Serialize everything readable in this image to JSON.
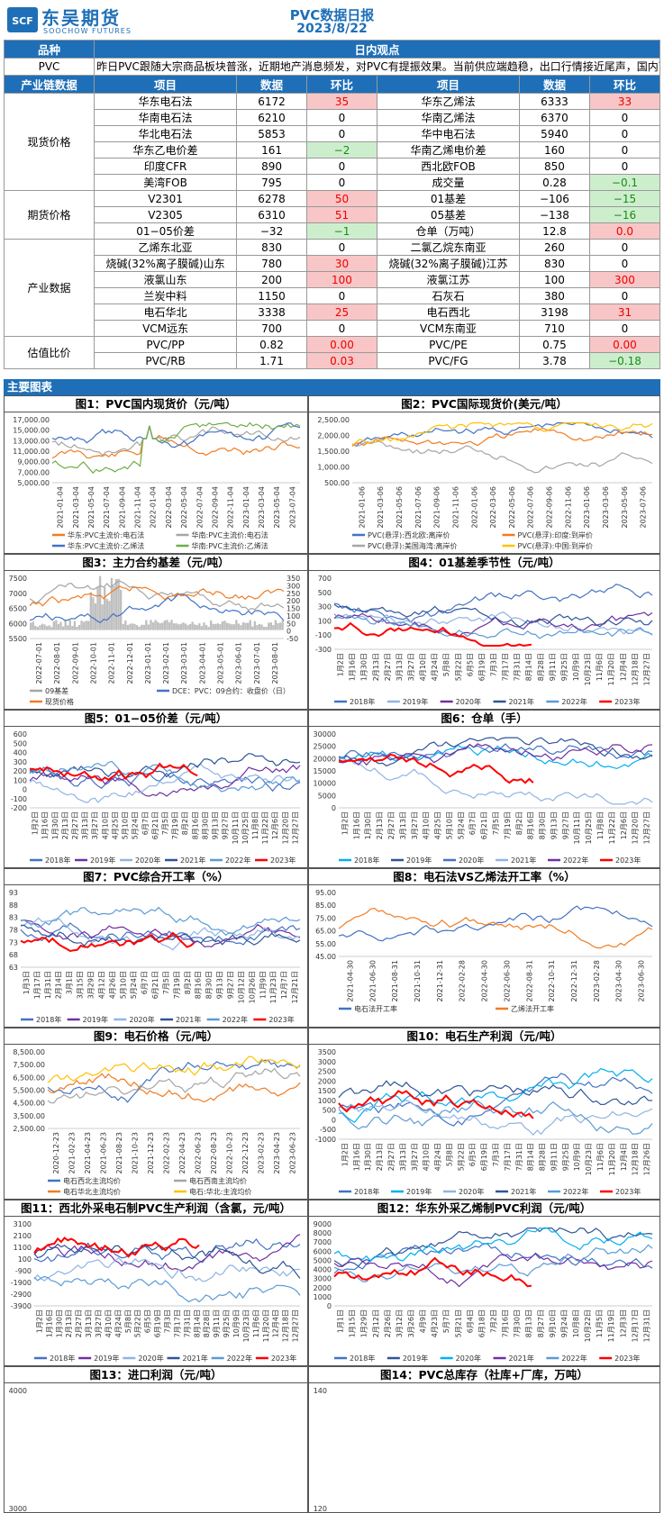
{
  "header": {
    "logo_cn": "东吴期货",
    "logo_en": "SOOCHOW FUTURES",
    "logo_mark": "SCF",
    "title": "PVC数据日报",
    "date": "2023/8/22"
  },
  "colors": {
    "blue_bar": "#1e6fb7",
    "red_cell": "#f8c6c6",
    "green_cell": "#cdeecd"
  },
  "top": {
    "col1": "品种",
    "col2": "日内观点",
    "product": "PVC",
    "view": "昨日PVC跟随大宗商品板块普涨，近期地产消息频发，对PVC有提振效果。当前供应端趋稳，出口行情接近尾声，国内下游行业追涨意愿不强烈，目前基本面无明显改善，关注宏观情况变化"
  },
  "table_header": [
    "产业链数据",
    "项目",
    "数据",
    "环比",
    "项目",
    "数据",
    "环比"
  ],
  "groups": [
    {
      "name": "现货价格",
      "rows": [
        [
          "华东电石法",
          "6172",
          "35",
          "red",
          "华东乙烯法",
          "6333",
          "33",
          "red"
        ],
        [
          "华南电石法",
          "6210",
          "0",
          "",
          "华南乙烯法",
          "6370",
          "0",
          ""
        ],
        [
          "华北电石法",
          "5853",
          "0",
          "",
          "华中电石法",
          "5940",
          "0",
          ""
        ],
        [
          "华东乙电价差",
          "161",
          "−2",
          "green",
          "华南乙烯电价差",
          "160",
          "0",
          ""
        ],
        [
          "印度CFR",
          "890",
          "0",
          "",
          "西北欧FOB",
          "850",
          "0",
          ""
        ],
        [
          "美湾FOB",
          "795",
          "0",
          "",
          "成交量",
          "0.28",
          "−0.1",
          "green"
        ]
      ]
    },
    {
      "name": "期货价格",
      "rows": [
        [
          "V2301",
          "6278",
          "50",
          "red",
          "01基差",
          "−106",
          "−15",
          "green"
        ],
        [
          "V2305",
          "6310",
          "51",
          "red",
          "05基差",
          "−138",
          "−16",
          "green"
        ],
        [
          "01−05价差",
          "−32",
          "−1",
          "green",
          "仓单（万吨）",
          "12.8",
          "0.0",
          "red"
        ]
      ]
    },
    {
      "name": "产业数据",
      "rows": [
        [
          "乙烯东北亚",
          "830",
          "0",
          "",
          "二氯乙烷东南亚",
          "260",
          "0",
          ""
        ],
        [
          "烧碱(32%离子膜碱)山东",
          "780",
          "30",
          "red",
          "烧碱(32%离子膜碱)江苏",
          "830",
          "0",
          ""
        ],
        [
          "液氯山东",
          "200",
          "100",
          "red",
          "液氯江苏",
          "100",
          "300",
          "red"
        ],
        [
          "兰炭中料",
          "1150",
          "0",
          "",
          "石灰石",
          "380",
          "0",
          ""
        ],
        [
          "电石华北",
          "3338",
          "25",
          "red",
          "电石西北",
          "3198",
          "31",
          "red"
        ],
        [
          "VCM远东",
          "700",
          "0",
          "",
          "VCM东南亚",
          "710",
          "0",
          ""
        ]
      ]
    },
    {
      "name": "估值比价",
      "rows": [
        [
          "PVC/PP",
          "0.82",
          "0.00",
          "red",
          "PVC/PE",
          "0.75",
          "0.00",
          "red"
        ],
        [
          "PVC/RB",
          "1.71",
          "0.03",
          "red",
          "PVC/FG",
          "3.78",
          "−0.18",
          "green"
        ]
      ]
    }
  ],
  "section_label": "主要图表",
  "charts": [
    {
      "title": "图1：PVC国内现货价（元/吨）",
      "yticks": [
        "17,000.00",
        "15,000.00",
        "13,000.00",
        "11,000.00",
        "9,000.00",
        "7,000.00",
        "5,000.00"
      ],
      "xticks": [
        "2021-01-04",
        "2021-03-04",
        "2021-05-04",
        "2021-07-04",
        "2021-09-04",
        "2021-11-04",
        "2022-01-04",
        "2022-03-04",
        "2022-05-04",
        "2022-07-04",
        "2022-09-04",
        "2022-11-04",
        "2023-01-04",
        "2023-03-04",
        "2023-05-04",
        "2023-07-04"
      ],
      "legend": [
        "华东:PVC主流价:电石法",
        "华南:PVC主流价:电石法",
        "华东:PVC主流价:乙烯法",
        "华南:PVC主流价:乙烯法"
      ],
      "legend_colors": [
        "#f07c22",
        "#a5a5a5",
        "#4472c4",
        "#70ad47"
      ]
    },
    {
      "title": "图2：PVC国际现货价(美元/吨）",
      "yticks": [
        "2,500.00",
        "2,000.00",
        "1,500.00",
        "1,000.00",
        "500.00"
      ],
      "xticks": [
        "2021-01-06",
        "2021-03-06",
        "2021-05-06",
        "2021-07-06",
        "2021-09-06",
        "2021-11-06",
        "2022-01-06",
        "2022-03-06",
        "2022-05-06",
        "2022-07-06",
        "2022-09-06",
        "2022-11-06",
        "2023-01-06",
        "2023-03-06",
        "2023-05-06",
        "2023-07-06"
      ],
      "legend": [
        "PVC(悬浮):西北欧:离岸价",
        "PVC(悬浮):印度:到岸价",
        "PVC(悬浮):美国海湾:离岸价",
        "PVC(悬浮):中国:到岸价"
      ],
      "legend_colors": [
        "#4472c4",
        "#f07c22",
        "#a5a5a5",
        "#ffc000"
      ]
    },
    {
      "title": "图3：主力合约基差（元/吨）",
      "yticks": [
        "7500",
        "7000",
        "6500",
        "6000",
        "5500"
      ],
      "yticks_r": [
        "350",
        "300",
        "250",
        "200",
        "150",
        "100",
        "50",
        "0",
        "-50"
      ],
      "xticks": [
        "2022-07-01",
        "2022-08-01",
        "2022-09-01",
        "2022-10-01",
        "2022-11-01",
        "2022-12-01",
        "2023-01-01",
        "2023-02-01",
        "2023-03-01",
        "2023-04-01",
        "2023-05-01",
        "2023-06-01",
        "2023-07-01",
        "2023-08-01"
      ],
      "legend": [
        "09基差",
        "DCE：PVC：09合约：收盘价（日）",
        "现货价格"
      ],
      "legend_colors": [
        "#a5a5a5",
        "#4472c4",
        "#f07c22"
      ]
    },
    {
      "title": "图4：01基差季节性（元/吨）",
      "yticks": [
        "700",
        "500",
        "300",
        "100",
        "-100",
        "-300"
      ],
      "xticks": [
        "1月2日",
        "1月16日",
        "1月30日",
        "2月13日",
        "2月27日",
        "3月13日",
        "3月27日",
        "4月10日",
        "4月24日",
        "5月8日",
        "5月22日",
        "6月5日",
        "6月19日",
        "7月3日",
        "7月17日",
        "7月31日",
        "8月14日",
        "8月28日",
        "9月11日",
        "9月25日",
        "10月9日",
        "10月23日",
        "11月6日",
        "11月20日",
        "12月4日",
        "12月18日",
        "12月27日"
      ],
      "legend": [
        "2018年",
        "2019年",
        "2020年",
        "2021年",
        "2022年",
        "2023年"
      ],
      "legend_colors": [
        "#4472c4",
        "#8fb4e3",
        "#7030a0",
        "#2f5597",
        "#5b9bd5",
        "#ff0000"
      ]
    },
    {
      "title": "图5：01−05价差（元/吨）",
      "yticks": [
        "600",
        "500",
        "400",
        "300",
        "200",
        "100",
        "0",
        "-100",
        "-200"
      ],
      "xticks": [
        "1月2日",
        "1月16日",
        "1月30日",
        "2月13日",
        "2月27日",
        "3月13日",
        "3月27日",
        "4月10日",
        "4月25日",
        "5月10日",
        "5月24日",
        "6月7日",
        "6月21日",
        "7月5日",
        "7月19日",
        "8月2日",
        "8月16日",
        "8月30日",
        "9月13日",
        "9月27日",
        "10月11日",
        "10月25日",
        "11月8日",
        "11月22日",
        "12月6日",
        "12月20日",
        "12月27日"
      ],
      "legend": [
        "2018年",
        "2019年",
        "2020年",
        "2021年",
        "2022年",
        "2023年"
      ],
      "legend_colors": [
        "#4472c4",
        "#7030a0",
        "#8fb4e3",
        "#2f5597",
        "#5b9bd5",
        "#ff0000"
      ]
    },
    {
      "title": "图6：仓单（手）",
      "yticks": [
        "30000",
        "25000",
        "20000",
        "15000",
        "10000",
        "5000",
        "0"
      ],
      "xticks": [
        "1月2日",
        "1月16日",
        "1月30日",
        "2月13日",
        "2月27日",
        "3月13日",
        "3月27日",
        "4月10日",
        "4月25日",
        "5月10日",
        "5月24日",
        "6月7日",
        "6月21日",
        "7月5日",
        "7月19日",
        "8月2日",
        "8月16日",
        "8月30日",
        "9月13日",
        "9月27日",
        "10月11日",
        "10月25日",
        "11月8日",
        "11月22日",
        "12月6日",
        "12月20日",
        "12月27日"
      ],
      "legend": [
        "2018年",
        "2019年",
        "2020年",
        "2021年",
        "2022年",
        "2023年"
      ],
      "legend_colors": [
        "#00b0f0",
        "#2f5597",
        "#4472c4",
        "#8fb4e3",
        "#7030a0",
        "#ff0000"
      ]
    },
    {
      "title": "图7：PVC综合开工率（%）",
      "yticks": [
        "93",
        "88",
        "83",
        "78",
        "73",
        "68",
        "63"
      ],
      "xticks": [
        "1月3日",
        "1月17日",
        "1月31日",
        "2月14日",
        "3月1日",
        "3月15日",
        "3月29日",
        "4月12日",
        "4月26日",
        "5月10日",
        "5月24日",
        "6月7日",
        "6月21日",
        "7月5日",
        "7月19日",
        "8月2日",
        "8月16日",
        "8月30日",
        "9月13日",
        "9月27日",
        "10月12日",
        "10月26日",
        "11月9日",
        "11月23日",
        "12月7日",
        "12月21日"
      ],
      "legend": [
        "2018年",
        "2019年",
        "2020年",
        "2021年",
        "2022年",
        "2023年"
      ],
      "legend_colors": [
        "#4472c4",
        "#7030a0",
        "#8fb4e3",
        "#2f5597",
        "#5b9bd5",
        "#ff0000"
      ]
    },
    {
      "title": "图8：电石法VS乙烯法开工率（%）",
      "yticks": [
        "95.00",
        "85.00",
        "75.00",
        "65.00",
        "55.00",
        "45.00"
      ],
      "xticks": [
        "2021-04-30",
        "2021-06-30",
        "2021-08-31",
        "2021-10-31",
        "2021-12-31",
        "2022-02-28",
        "2022-04-30",
        "2022-06-30",
        "2022-08-31",
        "2022-10-31",
        "2022-12-31",
        "2023-02-28",
        "2023-04-30",
        "2023-06-30"
      ],
      "legend": [
        "电石法开工率",
        "乙烯法开工率"
      ],
      "legend_colors": [
        "#4472c4",
        "#f07c22"
      ]
    },
    {
      "title": "图9：电石价格（元/吨）",
      "yticks": [
        "8,500.00",
        "7,500.00",
        "6,500.00",
        "5,500.00",
        "4,500.00",
        "3,500.00",
        "2,500.00"
      ],
      "xticks": [
        "2020-12-23",
        "2021-02-23",
        "2021-04-23",
        "2021-06-23",
        "2021-08-23",
        "2021-10-23",
        "2021-12-23",
        "2022-02-23",
        "2022-04-23",
        "2022-06-23",
        "2022-08-23",
        "2022-10-23",
        "2022-12-23",
        "2023-02-23",
        "2023-04-23",
        "2023-06-23"
      ],
      "legend": [
        "电石西北主流均价",
        "电石西南主流均价",
        "电石华北主流均价",
        "电石:华北:主流均价"
      ],
      "legend_colors": [
        "#4472c4",
        "#a5a5a5",
        "#f07c22",
        "#ffc000"
      ]
    },
    {
      "title": "图10：电石生产利润（元/吨）",
      "yticks": [
        "3500",
        "3000",
        "2500",
        "2000",
        "1500",
        "1000",
        "500",
        "0",
        "-500",
        "-1000"
      ],
      "xticks": [
        "1月2日",
        "1月16日",
        "1月30日",
        "2月13日",
        "2月27日",
        "3月13日",
        "3月27日",
        "4月10日",
        "4月24日",
        "5月8日",
        "5月22日",
        "6月5日",
        "6月19日",
        "7月3日",
        "7月17日",
        "7月31日",
        "8月14日",
        "8月28日",
        "9月11日",
        "9月25日",
        "10月9日",
        "10月23日",
        "11月6日",
        "11月20日",
        "12月4日",
        "12月18日",
        "12月26日"
      ],
      "legend": [
        "2018年",
        "2019年",
        "2020年",
        "2021年",
        "2022年",
        "2023年"
      ],
      "legend_colors": [
        "#4472c4",
        "#00b0f0",
        "#8fb4e3",
        "#2f5597",
        "#5b9bd5",
        "#ff0000"
      ]
    },
    {
      "title": "图11：西北外采电石制PVC生产利润（含氯，元/吨）",
      "yticks": [
        "3100",
        "2100",
        "1100",
        "100",
        "-900",
        "-1900",
        "-2900",
        "-3900"
      ],
      "xticks": [
        "1月2日",
        "1月16日",
        "1月30日",
        "2月13日",
        "2月27日",
        "3月13日",
        "3月27日",
        "4月10日",
        "4月24日",
        "5月8日",
        "5月22日",
        "6月5日",
        "6月19日",
        "7月3日",
        "7月17日",
        "7月31日",
        "8月14日",
        "8月28日",
        "9月11日",
        "9月25日",
        "10月9日",
        "10月23日",
        "11月6日",
        "11月20日",
        "12月4日",
        "12月18日",
        "12月27日"
      ],
      "legend": [
        "2018年",
        "2019年",
        "2020年",
        "2021年",
        "2022年",
        "2023年"
      ],
      "legend_colors": [
        "#4472c4",
        "#7030a0",
        "#8fb4e3",
        "#2f5597",
        "#5b9bd5",
        "#ff0000"
      ]
    },
    {
      "title": "图12：华东外采乙烯制PVC利润（元/吨）",
      "yticks": [
        "9000",
        "8000",
        "7000",
        "6000",
        "5000",
        "4000",
        "3000",
        "2000",
        "1000",
        "0"
      ],
      "xticks": [
        "1月1日",
        "1月15日",
        "1月29日",
        "2月12日",
        "2月26日",
        "3月12日",
        "3月26日",
        "4月9日",
        "4月23日",
        "5月7日",
        "5月21日",
        "6月4日",
        "6月18日",
        "7月2日",
        "7月16日",
        "7月30日",
        "8月13日",
        "8月27日",
        "9月10日",
        "9月24日",
        "10月8日",
        "10月22日",
        "11月5日",
        "11月19日",
        "12月3日",
        "12月17日",
        "12月31日"
      ],
      "legend": [
        "2018年",
        "2019年",
        "2020年",
        "2021年",
        "2022年",
        "2023年"
      ],
      "legend_colors": [
        "#4472c4",
        "#2f5597",
        "#00b0f0",
        "#7030a0",
        "#5b9bd5",
        "#ff0000"
      ]
    },
    {
      "title": "图13：进口利润（元/吨）",
      "yticks": [
        "4000",
        "3000"
      ]
    },
    {
      "title": "图14：PVC总库存（社库+厂库，万吨）",
      "yticks": [
        "140",
        "120"
      ]
    }
  ]
}
